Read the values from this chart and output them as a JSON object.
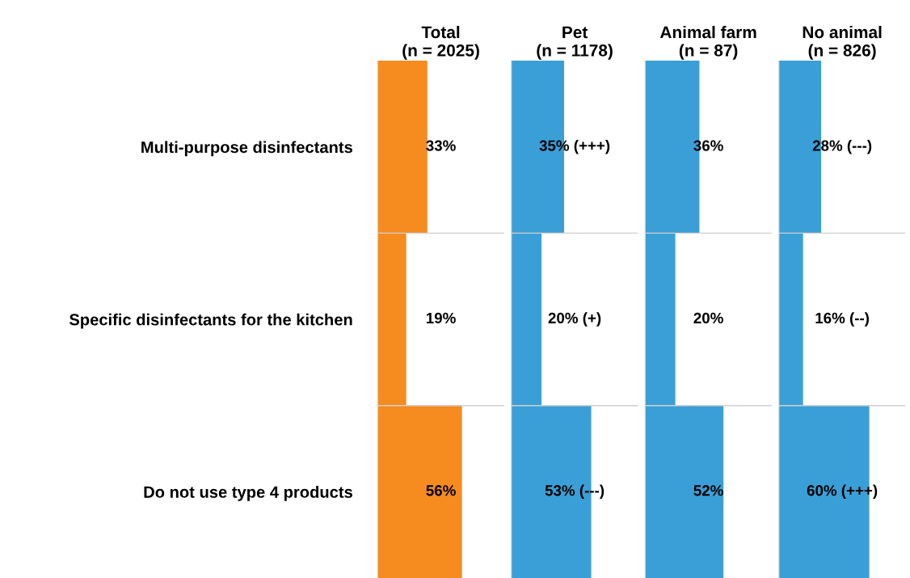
{
  "chart_data": [
    {
      "type": "bar",
      "orientation": "horizontal",
      "title": "Total\n(n = 2025)",
      "categories": [
        "Multi-purpose disinfectants",
        "Specific disinfectants for the kitchen",
        "Do not use type 4 products"
      ],
      "tick_labels": "y",
      "values": [
        33,
        19,
        56
      ],
      "color": "#f68b1f",
      "value_labels": [
        "33%",
        "19%",
        "56%"
      ]
    },
    {
      "type": "bar",
      "orientation": "horizontal",
      "title": "Pet\n(n = 1178)",
      "categories": [
        null,
        null,
        null
      ],
      "tick_labels": false,
      "values": [
        35,
        20,
        53
      ],
      "color": "#3a9fd6",
      "value_labels": [
        "35% (+++)",
        "20% (+)",
        "53% (---)"
      ]
    },
    {
      "type": "bar",
      "orientation": "horizontal",
      "title": "Animal farm\n(n = 87)",
      "categories": [
        null,
        null,
        null
      ],
      "tick_labels": false,
      "values": [
        36,
        20,
        52
      ],
      "color": "#3a9fd6",
      "value_labels": [
        "36%",
        "20%",
        "52%"
      ]
    },
    {
      "type": "bar",
      "orientation": "horizontal",
      "title": "No animal\n(n = 826)",
      "categories": [
        null,
        null,
        null
      ],
      "tick_labels": false,
      "values": [
        28,
        16,
        60
      ],
      "color": "#3a9fd6",
      "value_labels": [
        "28% (---)",
        "16% (--)",
        "60% (+++)"
      ]
    }
  ]
}
